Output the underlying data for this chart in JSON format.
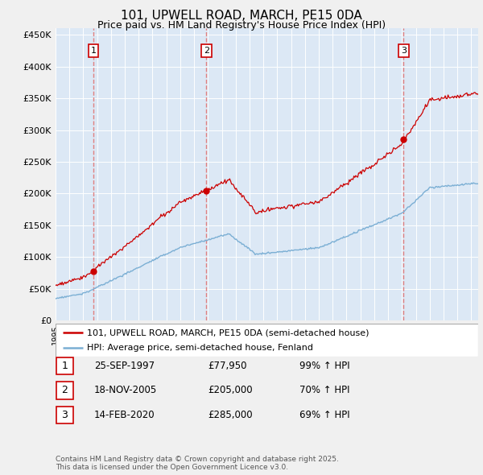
{
  "title": "101, UPWELL ROAD, MARCH, PE15 0DA",
  "subtitle": "Price paid vs. HM Land Registry's House Price Index (HPI)",
  "ylim": [
    0,
    460000
  ],
  "yticks": [
    0,
    50000,
    100000,
    150000,
    200000,
    250000,
    300000,
    350000,
    400000,
    450000
  ],
  "ytick_labels": [
    "£0",
    "£50K",
    "£100K",
    "£150K",
    "£200K",
    "£250K",
    "£300K",
    "£350K",
    "£400K",
    "£450K"
  ],
  "hpi_color": "#7bafd4",
  "price_color": "#cc0000",
  "vline_color": "#e08080",
  "plot_bg_color": "#dce8f5",
  "bg_color": "#f0f0f0",
  "grid_color": "#ffffff",
  "sale1_date": 1997.73,
  "sale1_price": 77950,
  "sale1_label": "1",
  "sale2_date": 2005.88,
  "sale2_price": 205000,
  "sale2_label": "2",
  "sale3_date": 2020.12,
  "sale3_price": 285000,
  "sale3_label": "3",
  "legend_line1": "101, UPWELL ROAD, MARCH, PE15 0DA (semi-detached house)",
  "legend_line2": "HPI: Average price, semi-detached house, Fenland",
  "table_rows": [
    [
      "1",
      "25-SEP-1997",
      "£77,950",
      "99% ↑ HPI"
    ],
    [
      "2",
      "18-NOV-2005",
      "£205,000",
      "70% ↑ HPI"
    ],
    [
      "3",
      "14-FEB-2020",
      "£285,000",
      "69% ↑ HPI"
    ]
  ],
  "footnote": "Contains HM Land Registry data © Crown copyright and database right 2025.\nThis data is licensed under the Open Government Licence v3.0."
}
